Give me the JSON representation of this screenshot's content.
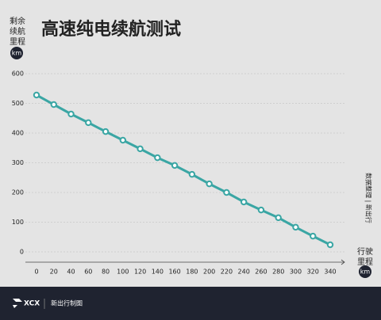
{
  "chart_data": {
    "type": "line",
    "title": "高速纯电续航测试",
    "y_label": [
      "剩余",
      "续航",
      "里程"
    ],
    "y_unit": "km",
    "x_label": [
      "行驶",
      "里程"
    ],
    "x_unit": "km",
    "source": "数据整理 | 新出行",
    "x": [
      0,
      20,
      40,
      60,
      80,
      100,
      120,
      140,
      160,
      180,
      200,
      220,
      240,
      260,
      280,
      300,
      320,
      340
    ],
    "values": [
      528,
      496,
      464,
      435,
      405,
      376,
      347,
      317,
      291,
      261,
      229,
      200,
      168,
      141,
      115,
      83,
      53,
      24
    ],
    "color": "#3aa6a4",
    "xlim": [
      0,
      340
    ],
    "xticks": [
      0,
      20,
      40,
      60,
      80,
      100,
      120,
      140,
      160,
      180,
      200,
      220,
      240,
      260,
      280,
      300,
      320,
      340
    ],
    "ylim": [
      0,
      600
    ],
    "yticks": [
      0,
      100,
      200,
      300,
      400,
      500,
      600
    ],
    "grid": true
  },
  "footer": {
    "brand": "XCX",
    "text": "新出行制图"
  }
}
